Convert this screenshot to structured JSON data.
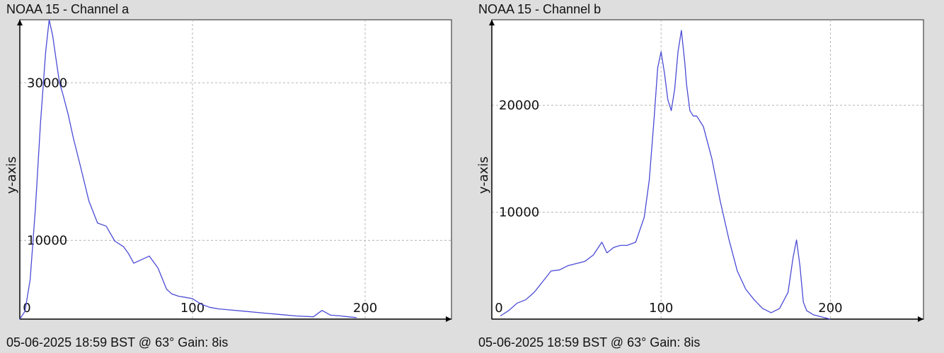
{
  "chart_data": [
    {
      "type": "line",
      "title": "NOAA 15 - Channel a",
      "ylabel": "y-axis",
      "xlabel": "",
      "footer": "05-06-2025 18:59 BST @ 63° Gain: 8is",
      "xlim": [
        0,
        250
      ],
      "ylim": [
        0,
        38000
      ],
      "x_ticks": [
        0,
        100,
        200
      ],
      "y_ticks": [
        10000,
        30000
      ],
      "grid": true,
      "color": "#4a4ad6",
      "series": [
        {
          "x": [
            0,
            3,
            6,
            9,
            12,
            15,
            17,
            19,
            21,
            23,
            25,
            28,
            31,
            35,
            40,
            45,
            50,
            55,
            60,
            63,
            66,
            70,
            75,
            80,
            85,
            88,
            92,
            95,
            100,
            105,
            110,
            115,
            120,
            130,
            140,
            150,
            160,
            170,
            175,
            180,
            186,
            190,
            195
          ],
          "y": [
            0,
            1000,
            5000,
            14000,
            25000,
            34000,
            38000,
            36000,
            33000,
            30000,
            28500,
            26000,
            23000,
            19500,
            15000,
            12200,
            11800,
            9900,
            9200,
            8300,
            7100,
            7500,
            8000,
            6500,
            3800,
            3200,
            2900,
            2800,
            2600,
            1900,
            1500,
            1300,
            1200,
            1000,
            800,
            600,
            400,
            300,
            1100,
            500,
            400,
            300,
            200
          ]
        }
      ]
    },
    {
      "type": "line",
      "title": "NOAA 15 - Channel b",
      "ylabel": "y-axis",
      "xlabel": "",
      "footer": "05-06-2025 18:59 BST @ 63° Gain: 8is",
      "xlim": [
        0,
        255
      ],
      "ylim": [
        0,
        28000
      ],
      "x_ticks": [
        0,
        100,
        200
      ],
      "y_ticks": [
        10000,
        20000
      ],
      "grid": true,
      "color": "#4a4ad6",
      "series": [
        {
          "x": [
            5,
            10,
            15,
            20,
            25,
            30,
            35,
            40,
            45,
            50,
            55,
            60,
            65,
            68,
            72,
            76,
            80,
            85,
            90,
            93,
            96,
            98,
            100,
            102,
            104,
            106,
            108,
            110,
            112,
            114,
            115,
            117,
            119,
            121,
            125,
            130,
            135,
            140,
            145,
            150,
            155,
            160,
            165,
            170,
            175,
            178,
            180,
            182,
            184,
            186,
            188,
            190,
            195,
            200
          ],
          "y": [
            300,
            800,
            1500,
            1800,
            2500,
            3500,
            4500,
            4600,
            5000,
            5200,
            5400,
            6000,
            7200,
            6200,
            6700,
            6900,
            6900,
            7200,
            9500,
            13000,
            19000,
            23500,
            25000,
            23000,
            20500,
            19500,
            21500,
            25000,
            27000,
            24000,
            22000,
            19500,
            19000,
            19000,
            18000,
            15000,
            11000,
            7500,
            4500,
            2800,
            1800,
            1000,
            600,
            1000,
            2500,
            5800,
            7400,
            5000,
            1600,
            800,
            600,
            400,
            200,
            0
          ]
        }
      ]
    }
  ]
}
